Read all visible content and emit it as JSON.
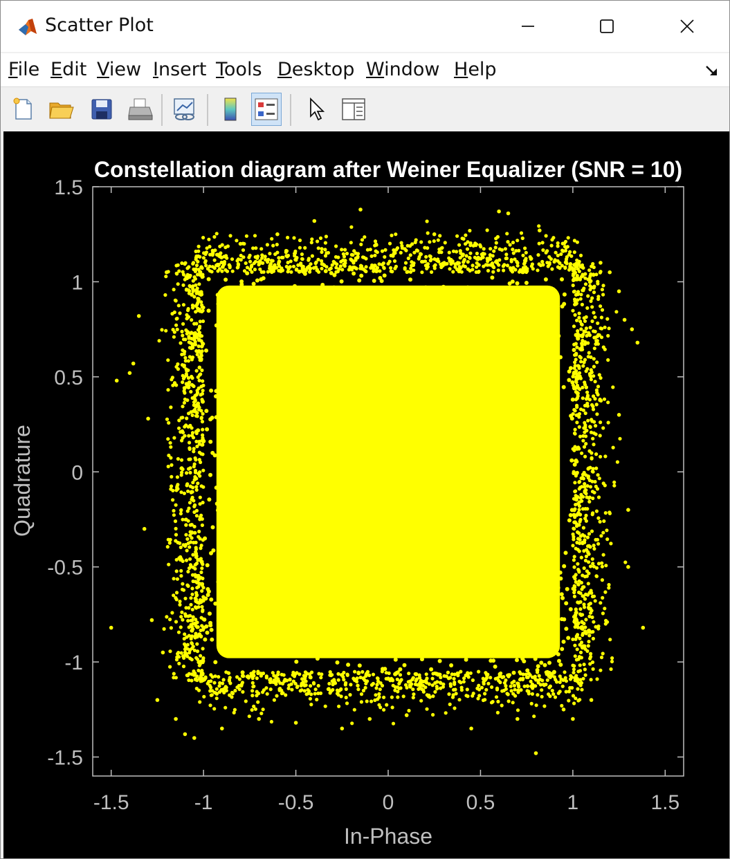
{
  "window": {
    "title": "Scatter Plot",
    "controls": {
      "minimize": "minimize",
      "maximize": "maximize",
      "close": "close"
    }
  },
  "menu": {
    "items": [
      {
        "accel": "F",
        "rest": "ile"
      },
      {
        "accel": "E",
        "rest": "dit"
      },
      {
        "accel": "V",
        "rest": "iew"
      },
      {
        "accel": "I",
        "rest": "nsert"
      },
      {
        "accel": "T",
        "rest": "ools"
      },
      {
        "accel": "D",
        "rest": "esktop"
      },
      {
        "accel": "W",
        "rest": "indow"
      },
      {
        "accel": "H",
        "rest": "elp"
      }
    ]
  },
  "toolbar": {
    "buttons": [
      {
        "icon": "new-figure-icon"
      },
      {
        "icon": "open-file-icon"
      },
      {
        "icon": "save-icon"
      },
      {
        "icon": "print-icon"
      },
      {
        "icon": "link-plot-icon"
      },
      {
        "icon": "colorbar-icon"
      },
      {
        "icon": "legend-icon",
        "active": true
      },
      {
        "icon": "edit-plot-arrow-icon"
      },
      {
        "icon": "property-inspector-icon"
      }
    ]
  },
  "chart_data": {
    "type": "scatter",
    "title": "Constellation diagram after Weiner Equalizer (SNR = 10)",
    "xlabel": "In-Phase",
    "ylabel": "Quadrature",
    "xlim": [
      -1.6,
      1.6
    ],
    "ylim": [
      -1.6,
      1.5
    ],
    "xticks": [
      -1.5,
      -1,
      -0.5,
      0,
      0.5,
      1,
      1.5
    ],
    "yticks": [
      -1.5,
      -1,
      -0.5,
      0,
      0.5,
      1,
      1.5
    ],
    "xtick_labels": [
      "-1.5",
      "-1",
      "-0.5",
      "0",
      "0.5",
      "1",
      "1.5"
    ],
    "ytick_labels": [
      "-1.5",
      "-1",
      "-0.5",
      "0",
      "0.5",
      "1",
      "1.5"
    ],
    "grid": false,
    "background": "#000000",
    "axis_color": "#bfbfbf",
    "series": [
      {
        "color": "#ffff00",
        "dense_region": {
          "x": [
            -1.05,
            1.05
          ],
          "y": [
            -1.1,
            1.1
          ]
        },
        "outliers": [
          [
            -1.5,
            -0.82
          ],
          [
            -1.47,
            0.48
          ],
          [
            -1.4,
            0.52
          ],
          [
            -1.38,
            0.57
          ],
          [
            -1.35,
            0.82
          ],
          [
            -1.32,
            -0.3
          ],
          [
            -1.3,
            0.28
          ],
          [
            -1.28,
            -0.78
          ],
          [
            -1.25,
            -1.2
          ],
          [
            -1.22,
            -0.95
          ],
          [
            -1.2,
            1.05
          ],
          [
            -1.15,
            -1.3
          ],
          [
            -1.1,
            -1.38
          ],
          [
            -1.05,
            -1.4
          ],
          [
            -0.95,
            1.15
          ],
          [
            -0.9,
            -1.35
          ],
          [
            -0.8,
            1.2
          ],
          [
            -0.7,
            -1.3
          ],
          [
            -0.6,
            1.25
          ],
          [
            -0.5,
            -1.32
          ],
          [
            -0.4,
            1.32
          ],
          [
            -0.25,
            -1.35
          ],
          [
            -0.15,
            1.38
          ],
          [
            -0.1,
            -1.3
          ],
          [
            0.1,
            -1.28
          ],
          [
            0.25,
            1.25
          ],
          [
            0.45,
            -1.35
          ],
          [
            0.6,
            1.37
          ],
          [
            0.65,
            1.36
          ],
          [
            0.7,
            -1.3
          ],
          [
            0.8,
            -1.48
          ],
          [
            0.82,
            1.27
          ],
          [
            0.95,
            -1.25
          ],
          [
            1.0,
            -1.3
          ],
          [
            1.1,
            -1.2
          ],
          [
            1.15,
            1.1
          ],
          [
            1.2,
            1.05
          ],
          [
            1.25,
            0.95
          ],
          [
            1.28,
            0.8
          ],
          [
            1.32,
            0.75
          ],
          [
            1.35,
            0.68
          ],
          [
            1.38,
            -0.82
          ],
          [
            1.3,
            -0.5
          ],
          [
            1.25,
            0.3
          ],
          [
            1.3,
            -0.2
          ]
        ]
      }
    ]
  }
}
